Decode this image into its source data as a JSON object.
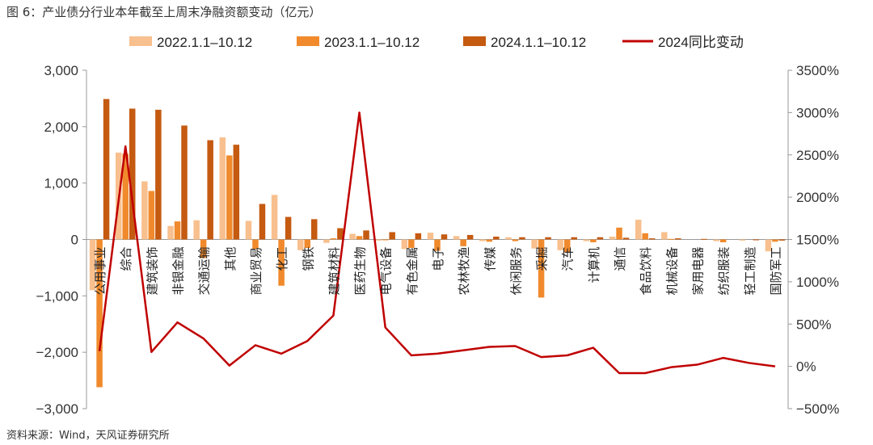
{
  "title": "图 6：产业债分行业本年截至上周末净融资额变动（亿元）",
  "source": "资料来源：Wind，天风证券研究所",
  "chart_data": {
    "type": "bar+line",
    "legend_position": "top",
    "legend": [
      "2022.1.1–10.12",
      "2023.1.1–10.12",
      "2024.1.1–10.12",
      "2024同比变动"
    ],
    "colors": {
      "s2022": "#F8C08E",
      "s2023": "#F08A2C",
      "s2024": "#C55A11",
      "line": "#C00000"
    },
    "categories": [
      "公用事业",
      "综合",
      "建筑装饰",
      "非银金融",
      "交通运输",
      "其他",
      "商业贸易",
      "化工",
      "钢铁",
      "建筑材料",
      "医药生物",
      "电气设备",
      "有色金属",
      "电子",
      "农林牧渔",
      "传媒",
      "休闲服务",
      "采掘",
      "汽车",
      "计算机",
      "通信",
      "食品饮料",
      "机械设备",
      "家用电器",
      "纺织服装",
      "轻工制造",
      "国防军工"
    ],
    "y_left": {
      "ticks": [
        "3,000",
        "2,000",
        "1,000",
        "0",
        "−1,000",
        "−2,000",
        "−3,000"
      ],
      "range": [
        -3000,
        3000
      ]
    },
    "y_right": {
      "ticks": [
        "3500%",
        "3000%",
        "2500%",
        "2000%",
        "1500%",
        "1000%",
        "500%",
        "0%",
        "−500%"
      ],
      "range": [
        -500,
        3500
      ]
    },
    "series": [
      {
        "name": "2022.1.1–10.12",
        "axis": "left",
        "values": [
          -900,
          1540,
          1030,
          240,
          340,
          1810,
          330,
          790,
          -190,
          -60,
          100,
          -20,
          -170,
          120,
          60,
          -30,
          40,
          -160,
          -190,
          -30,
          50,
          350,
          130,
          0,
          -30,
          -20,
          -210
        ]
      },
      {
        "name": "2023.1.1–10.12",
        "axis": "left",
        "values": [
          -2620,
          1520,
          860,
          320,
          -330,
          1490,
          -170,
          -820,
          -150,
          20,
          60,
          -10,
          -150,
          -200,
          -120,
          -40,
          -30,
          -1030,
          -230,
          -50,
          210,
          110,
          10,
          0,
          -50,
          0,
          -40
        ]
      },
      {
        "name": "2024.1.1–10.12",
        "axis": "left",
        "values": [
          2490,
          2320,
          2300,
          2020,
          1760,
          1680,
          630,
          400,
          360,
          200,
          160,
          130,
          110,
          90,
          80,
          50,
          40,
          40,
          40,
          40,
          30,
          20,
          20,
          10,
          0,
          -10,
          -20
        ]
      },
      {
        "name": "2024同比变动",
        "axis": "right",
        "type": "line",
        "values": [
          180,
          2600,
          170,
          520,
          330,
          10,
          250,
          150,
          300,
          600,
          3000,
          460,
          130,
          150,
          190,
          230,
          240,
          110,
          130,
          220,
          -80,
          -80,
          -10,
          20,
          100,
          40,
          0
        ]
      }
    ]
  }
}
